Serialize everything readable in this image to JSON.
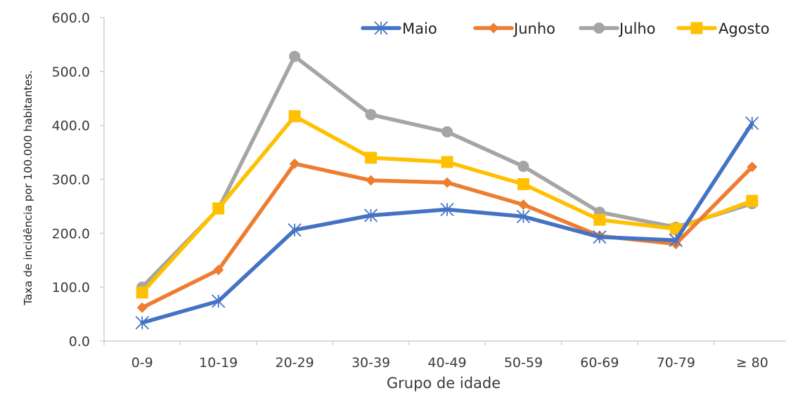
{
  "chart_data": {
    "type": "line",
    "title": "",
    "xlabel": "Grupo de idade",
    "ylabel": "Taxa de incidência por 100.000 habitantes.",
    "ylim": [
      0,
      600
    ],
    "yticks": [
      0,
      100,
      200,
      300,
      400,
      500,
      600
    ],
    "ytick_labels": [
      "0.0",
      "100.0",
      "200.0",
      "300.0",
      "400.0",
      "500.0",
      "600.0"
    ],
    "categories": [
      "0-9",
      "10-19",
      "20-29",
      "30-39",
      "40-49",
      "50-59",
      "60-69",
      "70-79",
      "≥ 80"
    ],
    "legend_position": "top-right",
    "grid": false,
    "series": [
      {
        "name": "Maio",
        "color": "#4472C4",
        "marker": "asterisk",
        "values": [
          34,
          74,
          206,
          233,
          244,
          231,
          193,
          187,
          404
        ]
      },
      {
        "name": "Junho",
        "color": "#ED7D31",
        "marker": "diamond",
        "values": [
          62,
          132,
          329,
          298,
          294,
          253,
          195,
          180,
          323
        ]
      },
      {
        "name": "Julho",
        "color": "#A5A5A5",
        "marker": "circle",
        "values": [
          100,
          245,
          528,
          420,
          388,
          324,
          239,
          211,
          255
        ]
      },
      {
        "name": "Agosto",
        "color": "#FFC000",
        "marker": "square",
        "values": [
          90,
          246,
          417,
          340,
          332,
          291,
          225,
          208,
          260
        ]
      }
    ]
  }
}
